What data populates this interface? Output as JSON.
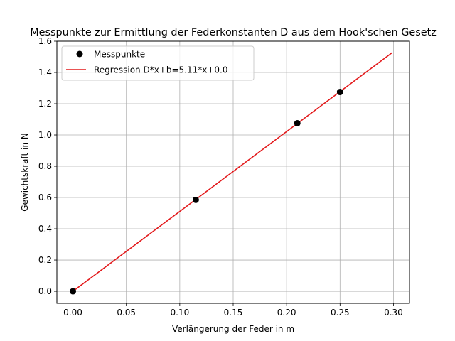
{
  "chart_data": {
    "type": "scatter",
    "title": "Messpunkte zur Ermittlung der Federkonstanten D aus dem Hook'schen Gesetz",
    "xlabel": "Verlängerung der Feder in m",
    "ylabel": "Gewichtskraft in N",
    "xlim": [
      -0.015,
      0.315
    ],
    "ylim": [
      -0.077,
      1.6
    ],
    "x_ticks": [
      0.0,
      0.05,
      0.1,
      0.15,
      0.2,
      0.25,
      0.3
    ],
    "x_tick_labels": [
      "0.00",
      "0.05",
      "0.10",
      "0.15",
      "0.20",
      "0.25",
      "0.30"
    ],
    "y_ticks": [
      0.0,
      0.2,
      0.4,
      0.6,
      0.8,
      1.0,
      1.2,
      1.4,
      1.6
    ],
    "y_tick_labels": [
      "0.0",
      "0.2",
      "0.4",
      "0.6",
      "0.8",
      "1.0",
      "1.2",
      "1.4",
      "1.6"
    ],
    "grid": true,
    "legend_position": "top-left",
    "series": [
      {
        "name": "Messpunkte",
        "kind": "points",
        "color": "#000000",
        "x": [
          0.0,
          0.115,
          0.21,
          0.25
        ],
        "y": [
          0.0,
          0.585,
          1.075,
          1.275
        ]
      },
      {
        "name": "Regression D*x+b=5.11*x+0.0",
        "kind": "line",
        "color": "#e31a1c",
        "x": [
          0.0,
          0.299
        ],
        "y": [
          0.0,
          1.528
        ]
      }
    ]
  }
}
